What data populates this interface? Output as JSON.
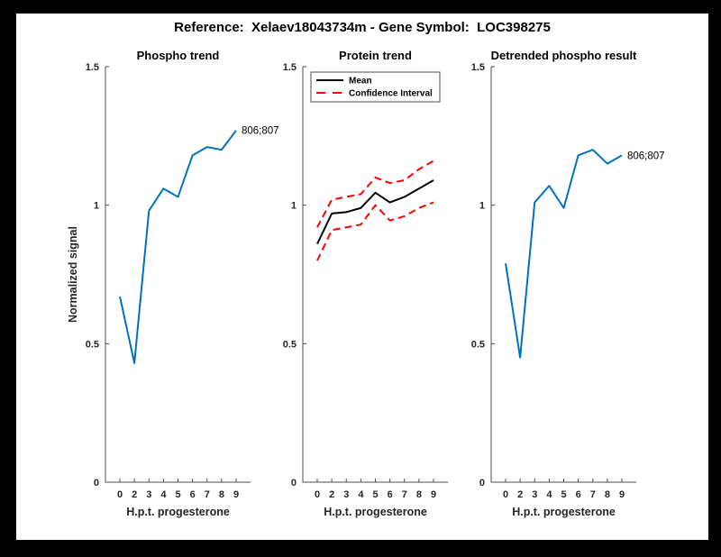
{
  "figure": {
    "title": "Reference:  Xelaev18043734m - Gene Symbol:  LOC398275",
    "background_color": "#000000",
    "canvas_color": "#ffffff"
  },
  "colors": {
    "blue": "#0072BD",
    "red": "#FF0000",
    "black": "#000000",
    "axis": "#4d4d4d",
    "tick_text": "#262626"
  },
  "chart_data": [
    {
      "type": "line",
      "title": "Phospho trend",
      "xlabel": "H.p.t. progesterone",
      "ylabel": "Normalized signal",
      "categories": [
        "0",
        "2",
        "3",
        "4",
        "5",
        "6",
        "7",
        "8",
        "9"
      ],
      "yticks": [
        "0",
        "0.5",
        "1",
        "1.5"
      ],
      "ytick_values": [
        0,
        0.5,
        1,
        1.5
      ],
      "ylim": [
        0,
        1.5
      ],
      "grid": false,
      "series": [
        {
          "name": "806;807",
          "color": "#0072BD",
          "style": "solid",
          "values": [
            0.67,
            0.43,
            0.98,
            1.06,
            1.03,
            1.18,
            1.21,
            1.2,
            1.27
          ],
          "end_label": "806;807"
        }
      ]
    },
    {
      "type": "line",
      "title": "Protein trend",
      "xlabel": "H.p.t. progesterone",
      "ylabel": "",
      "categories": [
        "0",
        "2",
        "3",
        "4",
        "5",
        "6",
        "7",
        "8",
        "9"
      ],
      "yticks": [
        "0",
        "0.5",
        "1",
        "1.5"
      ],
      "ytick_values": [
        0,
        0.5,
        1,
        1.5
      ],
      "ylim": [
        0,
        1.5
      ],
      "grid": false,
      "legend": {
        "position": "top-left",
        "items": [
          {
            "label": "Mean",
            "color": "#000000",
            "dash": false
          },
          {
            "label": "Confidence Interval",
            "color": "#FF0000",
            "dash": true
          }
        ]
      },
      "series": [
        {
          "name": "Mean",
          "color": "#000000",
          "style": "solid",
          "values": [
            0.86,
            0.97,
            0.975,
            0.99,
            1.045,
            1.01,
            1.03,
            1.06,
            1.09
          ]
        },
        {
          "name": "Confidence Interval upper",
          "color": "#FF0000",
          "style": "dashed",
          "values": [
            0.92,
            1.02,
            1.03,
            1.04,
            1.1,
            1.08,
            1.09,
            1.13,
            1.16
          ]
        },
        {
          "name": "Confidence Interval lower",
          "color": "#FF0000",
          "style": "dashed",
          "values": [
            0.8,
            0.91,
            0.92,
            0.93,
            1.0,
            0.945,
            0.96,
            0.99,
            1.01
          ]
        }
      ]
    },
    {
      "type": "line",
      "title": "Detrended phospho result",
      "xlabel": "H.p.t. progesterone",
      "ylabel": "",
      "categories": [
        "0",
        "2",
        "3",
        "4",
        "5",
        "6",
        "7",
        "8",
        "9"
      ],
      "yticks": [
        "0",
        "0.5",
        "1",
        "1.5"
      ],
      "ytick_values": [
        0,
        0.5,
        1,
        1.5
      ],
      "ylim": [
        0,
        1.5
      ],
      "grid": false,
      "series": [
        {
          "name": "806;807",
          "color": "#0072BD",
          "style": "solid",
          "values": [
            0.79,
            0.45,
            1.01,
            1.07,
            0.99,
            1.18,
            1.2,
            1.15,
            1.18
          ],
          "end_label": "806;807"
        }
      ]
    }
  ]
}
